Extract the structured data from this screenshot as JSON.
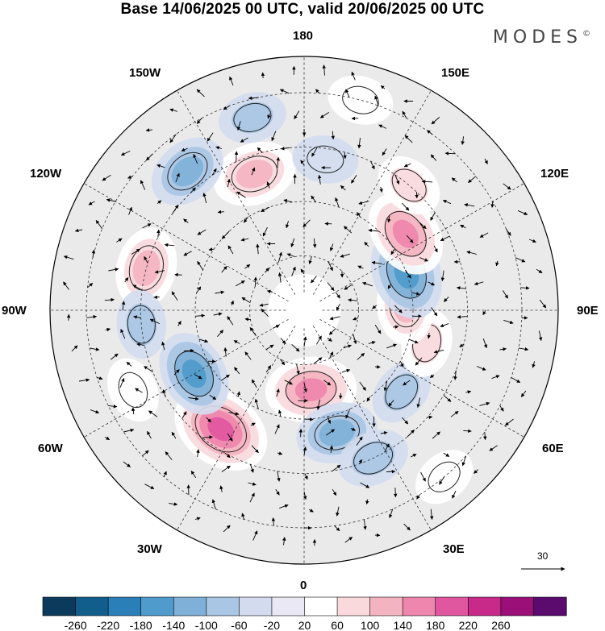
{
  "title": "Base 14/06/2025 00 UTC, valid 20/06/2025 00 UTC",
  "logo": "MODES",
  "logo_mark": "©",
  "longitude_labels": {
    "lon_180": "180",
    "lon_150e": "150E",
    "lon_120e": "120E",
    "lon_90e": "90E",
    "lon_60e": "60E",
    "lon_30e": "30E",
    "lon_0": "0",
    "lon_30w": "30W",
    "lon_60w": "60W",
    "lon_90w": "90W",
    "lon_120w": "120W",
    "lon_150w": "150W"
  },
  "vector_scale_label": "30",
  "colorbar": {
    "ticks": [
      "-260",
      "-220",
      "-180",
      "-140",
      "-100",
      "-60",
      "-20",
      "20",
      "60",
      "100",
      "140",
      "180",
      "220",
      "260"
    ],
    "colors": [
      "#0c3a5c",
      "#115e8c",
      "#2b7fb8",
      "#4f9bcc",
      "#7fb1d8",
      "#a9c6e4",
      "#d3dcef",
      "#e9e8f4",
      "#ffffff",
      "#f9d9dc",
      "#f4b3c0",
      "#ee86ad",
      "#e1579f",
      "#c82a8a",
      "#9b0f78",
      "#5b0a6e"
    ]
  },
  "anomalies": [
    {
      "lat": 50,
      "lon": -35,
      "value": 200
    },
    {
      "lat": 55,
      "lon": -60,
      "value": -140
    },
    {
      "lat": 68,
      "lon": 5,
      "value": 160
    },
    {
      "lat": 55,
      "lon": 15,
      "value": -120
    },
    {
      "lat": 45,
      "lon": 25,
      "value": -80
    },
    {
      "lat": 55,
      "lon": 50,
      "value": -60
    },
    {
      "lat": 55,
      "lon": 75,
      "value": 60
    },
    {
      "lat": 62,
      "lon": 93,
      "value": 110
    },
    {
      "lat": 60,
      "lon": 110,
      "value": -170
    },
    {
      "lat": 55,
      "lon": 127,
      "value": 150
    },
    {
      "lat": 30,
      "lon": 165,
      "value": 50
    },
    {
      "lat": 50,
      "lon": -160,
      "value": 130
    },
    {
      "lat": 35,
      "lon": -165,
      "value": -60
    },
    {
      "lat": 40,
      "lon": -140,
      "value": -110
    },
    {
      "lat": 45,
      "lon": -105,
      "value": 120
    },
    {
      "lat": 45,
      "lon": -85,
      "value": -60
    },
    {
      "lat": 38,
      "lon": -65,
      "value": 50
    },
    {
      "lat": 48,
      "lon": 172,
      "value": -50
    },
    {
      "lat": 30,
      "lon": 40,
      "value": 40
    },
    {
      "lat": 45,
      "lon": 140,
      "value": 60
    }
  ]
}
